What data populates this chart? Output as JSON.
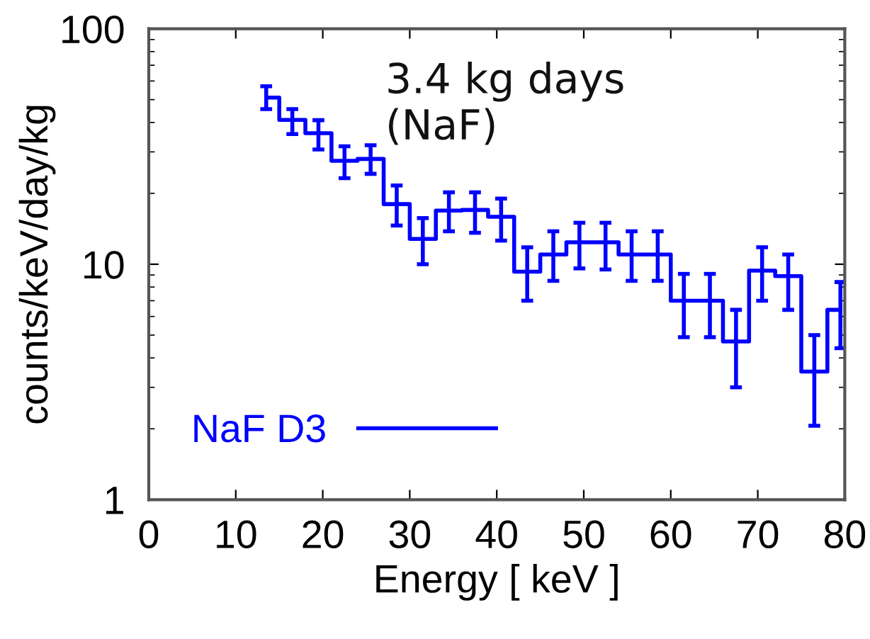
{
  "chart_data": {
    "type": "step",
    "xlabel": "Energy [ keV ]",
    "ylabel": "counts/keV/day/kg",
    "annotations": [
      "3.4 kg days\n(NaF)"
    ],
    "x": [
      13.5,
      16.5,
      19.5,
      22.5,
      25.5,
      28.5,
      31.5,
      34.5,
      37.5,
      40.5,
      43.5,
      46.5,
      49.5,
      52.5,
      55.5,
      58.5,
      61.5,
      64.5,
      67.5,
      70.5,
      73.5,
      76.5,
      79.5
    ],
    "series": [
      {
        "name": "NaF D3",
        "color": "#0000ff",
        "values": [
          51,
          41,
          36,
          27.5,
          28,
          18,
          12.8,
          16.9,
          17,
          15.9,
          9.3,
          11,
          12.4,
          12.4,
          11,
          11,
          7.0,
          7.0,
          4.7,
          9.4,
          8.9,
          3.5,
          6.4
        ],
        "errors": [
          [
            45.6,
            57
          ],
          [
            35.7,
            45.6
          ],
          [
            30.7,
            40.9
          ],
          [
            23.2,
            31.7
          ],
          [
            24.2,
            32
          ],
          [
            14.6,
            21.6
          ],
          [
            10,
            15.7
          ],
          [
            13.8,
            20.2
          ],
          [
            13.6,
            20.2
          ],
          [
            12.6,
            19
          ],
          [
            7.0,
            11.8
          ],
          [
            8.5,
            13.8
          ],
          [
            9.6,
            15
          ],
          [
            9.5,
            15
          ],
          [
            8.5,
            13.8
          ],
          [
            8.5,
            13.8
          ],
          [
            4.9,
            9.1
          ],
          [
            4.9,
            9.1
          ],
          [
            3.0,
            6.4
          ],
          [
            7.0,
            11.8
          ],
          [
            6.4,
            11.0
          ],
          [
            2.06,
            5.0
          ],
          [
            4.4,
            8.4
          ]
        ]
      }
    ],
    "log": "y",
    "xlim": [
      0,
      80
    ],
    "ylim": [
      1,
      100
    ],
    "xticks": [
      0,
      10,
      20,
      30,
      40,
      50,
      60,
      70,
      80
    ],
    "yticks": [
      1,
      10,
      100
    ],
    "legend": "bottom left",
    "grid": false
  }
}
